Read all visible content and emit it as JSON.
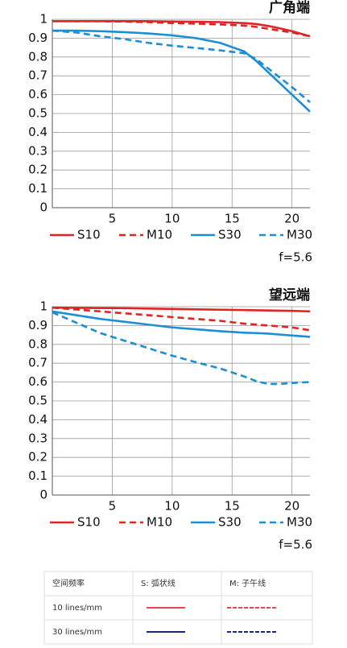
{
  "chart_data": [
    {
      "type": "line",
      "title": "广角端",
      "annotation": "f=5.6",
      "x": [
        0,
        2,
        4,
        6,
        8,
        10,
        12,
        14,
        16,
        17,
        18,
        19,
        20,
        21.5
      ],
      "xlim": [
        0,
        21.5
      ],
      "xticks": [
        5,
        10,
        15,
        20
      ],
      "ylim": [
        0,
        1
      ],
      "yticks": [
        0,
        0.1,
        0.2,
        0.3,
        0.4,
        0.5,
        0.6,
        0.7,
        0.8,
        0.9,
        1
      ],
      "grid": true,
      "series": [
        {
          "name": "S10",
          "color": "#e02424",
          "dashed": false,
          "values": [
            0.99,
            0.99,
            0.99,
            0.99,
            0.99,
            0.988,
            0.987,
            0.985,
            0.98,
            0.975,
            0.965,
            0.952,
            0.937,
            0.91
          ]
        },
        {
          "name": "M10",
          "color": "#e02424",
          "dashed": true,
          "values": [
            0.99,
            0.99,
            0.99,
            0.988,
            0.985,
            0.98,
            0.977,
            0.973,
            0.967,
            0.96,
            0.95,
            0.94,
            0.93,
            0.91
          ]
        },
        {
          "name": "S30",
          "color": "#1a8fd6",
          "dashed": false,
          "values": [
            0.94,
            0.94,
            0.937,
            0.932,
            0.925,
            0.915,
            0.9,
            0.875,
            0.83,
            0.78,
            0.72,
            0.66,
            0.6,
            0.51
          ]
        },
        {
          "name": "M30",
          "color": "#1a8fd6",
          "dashed": true,
          "values": [
            0.94,
            0.93,
            0.91,
            0.895,
            0.875,
            0.86,
            0.848,
            0.835,
            0.82,
            0.79,
            0.74,
            0.69,
            0.64,
            0.56
          ]
        }
      ]
    },
    {
      "type": "line",
      "title": "望远端",
      "annotation": "f=5.6",
      "x": [
        0,
        2,
        4,
        6,
        8,
        10,
        12,
        14,
        16,
        17,
        18,
        19,
        20,
        21.5
      ],
      "xlim": [
        0,
        21.5
      ],
      "xticks": [
        5,
        10,
        15,
        20
      ],
      "ylim": [
        0,
        1
      ],
      "yticks": [
        0,
        0.1,
        0.2,
        0.3,
        0.4,
        0.5,
        0.6,
        0.7,
        0.8,
        0.9,
        1
      ],
      "grid": true,
      "series": [
        {
          "name": "S10",
          "color": "#e02424",
          "dashed": false,
          "values": [
            0.995,
            0.994,
            0.993,
            0.992,
            0.99,
            0.988,
            0.986,
            0.984,
            0.982,
            0.981,
            0.98,
            0.979,
            0.978,
            0.975
          ]
        },
        {
          "name": "M10",
          "color": "#e02424",
          "dashed": true,
          "values": [
            0.995,
            0.985,
            0.975,
            0.965,
            0.955,
            0.945,
            0.935,
            0.925,
            0.91,
            0.905,
            0.9,
            0.895,
            0.89,
            0.875
          ]
        },
        {
          "name": "S30",
          "color": "#1a8fd6",
          "dashed": false,
          "values": [
            0.975,
            0.955,
            0.935,
            0.92,
            0.905,
            0.89,
            0.88,
            0.87,
            0.862,
            0.86,
            0.857,
            0.852,
            0.847,
            0.84
          ]
        },
        {
          "name": "M30",
          "color": "#1a8fd6",
          "dashed": true,
          "values": [
            0.97,
            0.915,
            0.86,
            0.82,
            0.78,
            0.74,
            0.705,
            0.672,
            0.63,
            0.605,
            0.59,
            0.59,
            0.595,
            0.6
          ]
        }
      ]
    }
  ],
  "table": {
    "header": [
      "空间频率",
      "S: 弧状线",
      "M: 子午线"
    ],
    "rows": [
      {
        "label": "10 lines/mm",
        "color": "#e04a4a"
      },
      {
        "label": "30 lines/mm",
        "color": "#1c2580"
      }
    ]
  }
}
